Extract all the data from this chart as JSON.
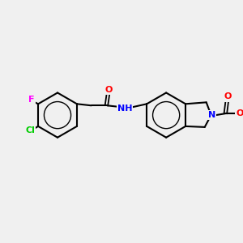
{
  "bg_color": "#f0f0f0",
  "bond_color": "#000000",
  "atom_colors": {
    "F": "#ff00ff",
    "Cl": "#00cc00",
    "N_amine": "#0000ff",
    "O": "#ff0000",
    "NH": "#0000ff",
    "C": "#000000"
  },
  "figsize": [
    3.0,
    3.0
  ],
  "dpi": 100
}
